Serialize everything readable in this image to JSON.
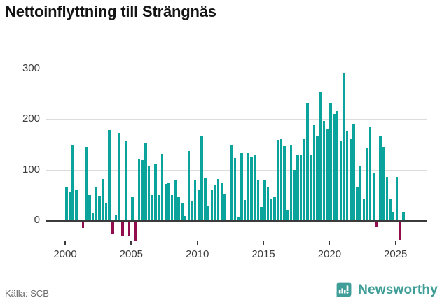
{
  "title": "Nettoinflyttning till Strängnäs",
  "footer": {
    "source": "Källa: SCB",
    "brand": "Newsworthy"
  },
  "chart_data": {
    "type": "bar",
    "title": "Nettoinflyttning till Strängnäs",
    "frequency": "quarterly",
    "xlabel": "",
    "ylabel": "",
    "y_ticks": [
      0,
      100,
      200,
      300
    ],
    "x_ticks": [
      2000,
      2005,
      2010,
      2015,
      2020,
      2025
    ],
    "ylim": [
      -45,
      310
    ],
    "grid": "horizontal",
    "legend": "none",
    "colors": {
      "positive_bar": "#0aa49c",
      "negative_bar": "#910d4d",
      "gridline": "#dcdcdc",
      "zero_line": "#3b3b3b",
      "axis_text": "#3d3d3d",
      "title_text": "#141414",
      "source_text": "#6b6b6b",
      "brand_teal": "#3f9e97"
    },
    "series": [
      {
        "year": 2000,
        "values": [
          65,
          57,
          148,
          60
        ]
      },
      {
        "year": 2001,
        "values": [
          2,
          -13,
          145,
          50
        ]
      },
      {
        "year": 2002,
        "values": [
          14,
          66,
          48,
          82
        ]
      },
      {
        "year": 2003,
        "values": [
          35,
          178,
          -25,
          10
        ]
      },
      {
        "year": 2004,
        "values": [
          172,
          -29,
          157,
          -29
        ]
      },
      {
        "year": 2005,
        "values": [
          47,
          -37,
          122,
          119
        ]
      },
      {
        "year": 2006,
        "values": [
          152,
          108,
          49,
          111
        ]
      },
      {
        "year": 2007,
        "values": [
          49,
          131,
          72,
          73
        ]
      },
      {
        "year": 2008,
        "values": [
          49,
          79,
          45,
          35
        ]
      },
      {
        "year": 2009,
        "values": [
          8,
          137,
          38,
          79
        ]
      },
      {
        "year": 2010,
        "values": [
          60,
          166,
          84,
          29
        ]
      },
      {
        "year": 2011,
        "values": [
          60,
          70,
          81,
          75
        ]
      },
      {
        "year": 2012,
        "values": [
          53,
          1,
          149,
          123
        ]
      },
      {
        "year": 2013,
        "values": [
          5,
          133,
          40,
          133
        ]
      },
      {
        "year": 2014,
        "values": [
          126,
          129,
          79,
          26
        ]
      },
      {
        "year": 2015,
        "values": [
          80,
          65,
          43,
          46
        ]
      },
      {
        "year": 2016,
        "values": [
          158,
          160,
          146,
          20
        ]
      },
      {
        "year": 2017,
        "values": [
          148,
          99,
          130,
          130
        ]
      },
      {
        "year": 2018,
        "values": [
          160,
          232,
          130,
          188
        ]
      },
      {
        "year": 2019,
        "values": [
          167,
          253,
          196,
          181
        ]
      },
      {
        "year": 2020,
        "values": [
          231,
          209,
          215,
          157
        ]
      },
      {
        "year": 2021,
        "values": [
          291,
          177,
          160,
          190
        ]
      },
      {
        "year": 2022,
        "values": [
          66,
          107,
          43,
          142
        ]
      },
      {
        "year": 2023,
        "values": [
          184,
          93,
          -9,
          165
        ]
      },
      {
        "year": 2024,
        "values": [
          145,
          86,
          41,
          16
        ]
      },
      {
        "year": 2025,
        "values": [
          86,
          -36,
          16
        ]
      }
    ]
  }
}
